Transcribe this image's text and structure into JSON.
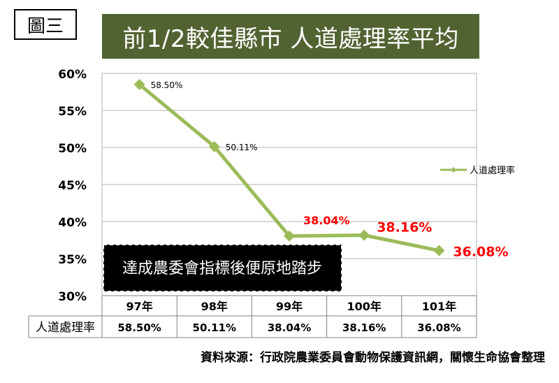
{
  "figure_label": "圖三",
  "title": "前1/2較佳縣市 人道處理率平均",
  "source_note": "資料來源：行政院農業委員會動物保護資訊網，關懷生命協會整理",
  "annotation": "達成農委會指標後便原地踏步",
  "colors": {
    "banner": "#526332",
    "line": "#9BBB59",
    "highlight": "#FF0000",
    "grid": "#B0B0B0"
  },
  "chart_data": {
    "type": "line",
    "categories": [
      "97年",
      "98年",
      "99年",
      "100年",
      "101年"
    ],
    "series": [
      {
        "name": "人道處理率",
        "values": [
          58.5,
          50.11,
          38.04,
          38.16,
          36.08
        ],
        "labels": [
          "58.50%",
          "50.11%",
          "38.04%",
          "38.16%",
          "36.08%"
        ],
        "highlighted": [
          false,
          false,
          true,
          true,
          true
        ]
      }
    ],
    "yticks": [
      "60%",
      "55%",
      "50%",
      "45%",
      "40%",
      "35%",
      "30%"
    ],
    "ylim": [
      30,
      60
    ],
    "grid": true,
    "legend": "right",
    "table": {
      "row_header": "人道處理率",
      "cells": [
        "58.50%",
        "50.11%",
        "38.04%",
        "38.16%",
        "36.08%"
      ]
    }
  }
}
